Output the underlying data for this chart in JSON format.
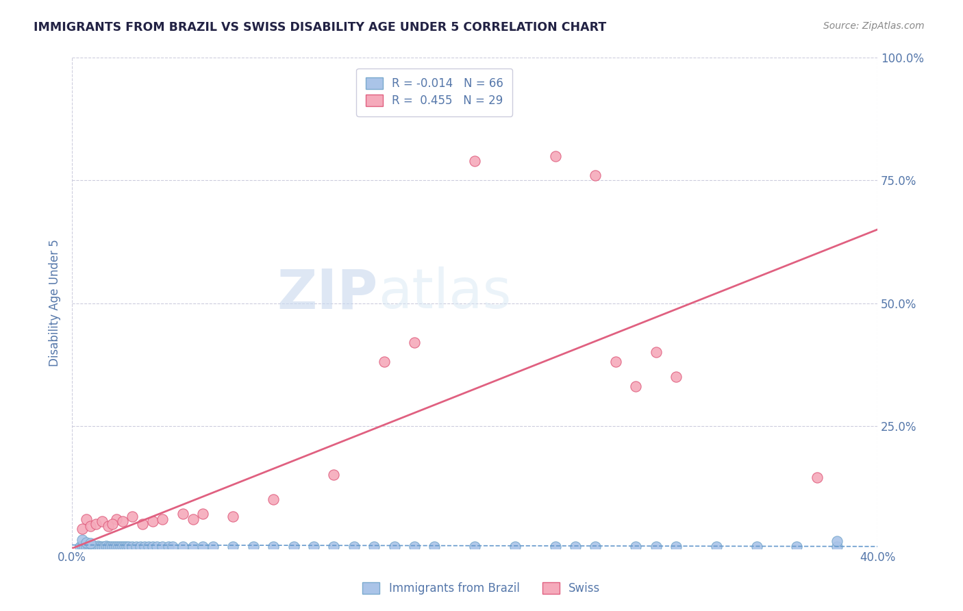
{
  "title": "IMMIGRANTS FROM BRAZIL VS SWISS DISABILITY AGE UNDER 5 CORRELATION CHART",
  "source": "Source: ZipAtlas.com",
  "ylabel": "Disability Age Under 5",
  "legend_labels": [
    "Immigrants from Brazil",
    "Swiss"
  ],
  "legend_r": [
    -0.014,
    0.455
  ],
  "legend_n": [
    66,
    29
  ],
  "xlim": [
    0.0,
    0.4
  ],
  "ylim": [
    0.0,
    1.0
  ],
  "yticks": [
    0.0,
    0.25,
    0.5,
    0.75,
    1.0
  ],
  "ytick_labels": [
    "",
    "25.0%",
    "50.0%",
    "75.0%",
    "100.0%"
  ],
  "xticks": [
    0.0,
    0.4
  ],
  "xtick_labels": [
    "0.0%",
    "40.0%"
  ],
  "blue_color": "#aac4e8",
  "pink_color": "#f5aabb",
  "blue_edge_color": "#7aaace",
  "pink_edge_color": "#e06080",
  "blue_line_color": "#6699cc",
  "pink_line_color": "#e06080",
  "title_color": "#222244",
  "tick_color": "#5577aa",
  "background_color": "#ffffff",
  "watermark_zip": "ZIP",
  "watermark_atlas": "atlas",
  "blue_scatter_x": [
    0.004,
    0.005,
    0.006,
    0.007,
    0.008,
    0.009,
    0.01,
    0.011,
    0.012,
    0.013,
    0.014,
    0.015,
    0.016,
    0.017,
    0.018,
    0.019,
    0.02,
    0.021,
    0.022,
    0.023,
    0.024,
    0.025,
    0.026,
    0.027,
    0.028,
    0.03,
    0.032,
    0.034,
    0.036,
    0.038,
    0.04,
    0.042,
    0.045,
    0.048,
    0.05,
    0.055,
    0.06,
    0.065,
    0.07,
    0.08,
    0.09,
    0.1,
    0.11,
    0.12,
    0.13,
    0.14,
    0.15,
    0.16,
    0.17,
    0.18,
    0.2,
    0.22,
    0.24,
    0.26,
    0.28,
    0.3,
    0.32,
    0.34,
    0.36,
    0.38,
    0.005,
    0.007,
    0.009,
    0.29,
    0.25,
    0.38
  ],
  "blue_scatter_y": [
    0.004,
    0.005,
    0.004,
    0.004,
    0.005,
    0.004,
    0.005,
    0.004,
    0.004,
    0.005,
    0.004,
    0.004,
    0.004,
    0.005,
    0.004,
    0.004,
    0.004,
    0.004,
    0.004,
    0.004,
    0.004,
    0.004,
    0.004,
    0.004,
    0.004,
    0.004,
    0.004,
    0.004,
    0.004,
    0.004,
    0.004,
    0.004,
    0.004,
    0.004,
    0.004,
    0.004,
    0.004,
    0.004,
    0.004,
    0.004,
    0.004,
    0.004,
    0.004,
    0.004,
    0.004,
    0.004,
    0.004,
    0.004,
    0.004,
    0.004,
    0.004,
    0.004,
    0.004,
    0.004,
    0.004,
    0.004,
    0.004,
    0.004,
    0.004,
    0.004,
    0.018,
    0.012,
    0.01,
    0.004,
    0.004,
    0.015
  ],
  "pink_scatter_x": [
    0.005,
    0.007,
    0.009,
    0.012,
    0.015,
    0.018,
    0.022,
    0.03,
    0.04,
    0.055,
    0.06,
    0.065,
    0.08,
    0.1,
    0.13,
    0.155,
    0.17,
    0.2,
    0.24,
    0.26,
    0.27,
    0.28,
    0.29,
    0.3,
    0.37,
    0.02,
    0.025,
    0.035,
    0.045
  ],
  "pink_scatter_y": [
    0.04,
    0.06,
    0.045,
    0.05,
    0.055,
    0.045,
    0.06,
    0.065,
    0.055,
    0.07,
    0.06,
    0.07,
    0.065,
    0.1,
    0.15,
    0.38,
    0.42,
    0.79,
    0.8,
    0.76,
    0.38,
    0.33,
    0.4,
    0.35,
    0.145,
    0.05,
    0.055,
    0.05,
    0.06
  ],
  "blue_trendline_x": [
    0.0,
    0.4
  ],
  "blue_trendline_y": [
    0.007,
    0.004
  ],
  "pink_trendline_x": [
    0.0,
    0.4
  ],
  "pink_trendline_y": [
    0.0,
    0.65
  ]
}
